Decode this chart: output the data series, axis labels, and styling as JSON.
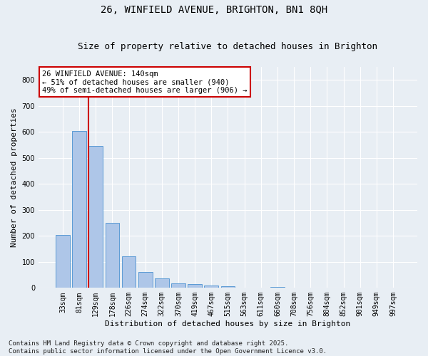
{
  "title_line1": "26, WINFIELD AVENUE, BRIGHTON, BN1 8QH",
  "title_line2": "Size of property relative to detached houses in Brighton",
  "xlabel": "Distribution of detached houses by size in Brighton",
  "ylabel": "Number of detached properties",
  "categories": [
    "33sqm",
    "81sqm",
    "129sqm",
    "178sqm",
    "226sqm",
    "274sqm",
    "322sqm",
    "370sqm",
    "419sqm",
    "467sqm",
    "515sqm",
    "563sqm",
    "611sqm",
    "660sqm",
    "708sqm",
    "756sqm",
    "804sqm",
    "852sqm",
    "901sqm",
    "949sqm",
    "997sqm"
  ],
  "values": [
    204,
    604,
    547,
    250,
    121,
    62,
    37,
    17,
    14,
    10,
    6,
    0,
    0,
    5,
    0,
    0,
    0,
    0,
    0,
    0,
    0
  ],
  "bar_color": "#aec6e8",
  "bar_edge_color": "#5b9bd5",
  "vline_color": "#cc0000",
  "vline_x_index": 2,
  "annotation_text": "26 WINFIELD AVENUE: 140sqm\n← 51% of detached houses are smaller (940)\n49% of semi-detached houses are larger (906) →",
  "annotation_box_color": "#ffffff",
  "annotation_box_edge_color": "#cc0000",
  "ylim": [
    0,
    850
  ],
  "yticks": [
    0,
    100,
    200,
    300,
    400,
    500,
    600,
    700,
    800
  ],
  "background_color": "#e8eef4",
  "grid_color": "#ffffff",
  "footer_line1": "Contains HM Land Registry data © Crown copyright and database right 2025.",
  "footer_line2": "Contains public sector information licensed under the Open Government Licence v3.0.",
  "title_fontsize": 10,
  "subtitle_fontsize": 9,
  "axis_label_fontsize": 8,
  "tick_fontsize": 7,
  "annotation_fontsize": 7.5,
  "footer_fontsize": 6.5
}
